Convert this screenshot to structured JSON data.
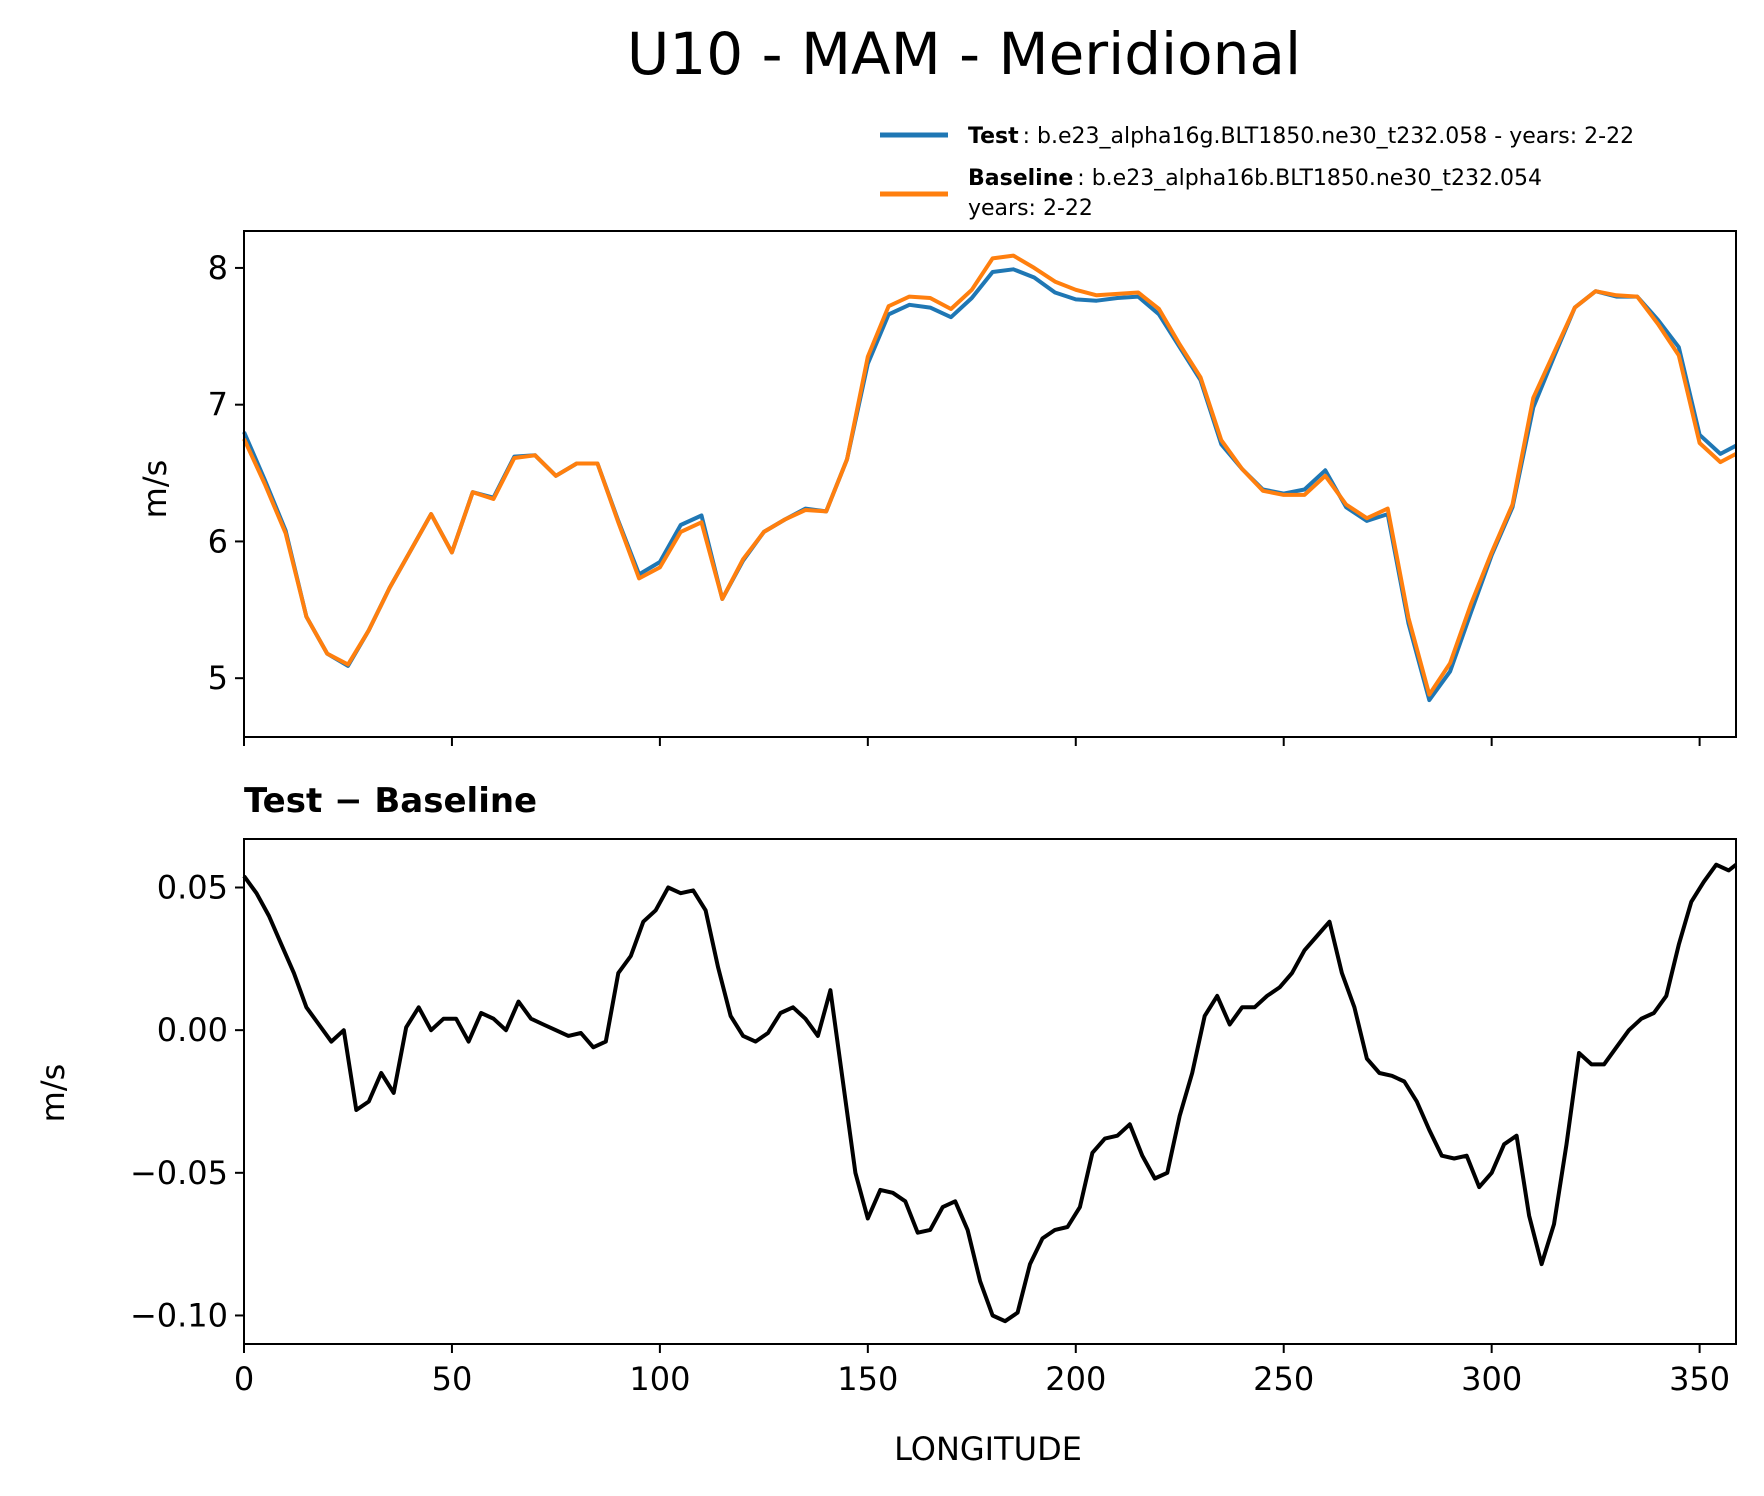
{
  "title": "U10 - MAM - Meridional",
  "legend": {
    "test_label": "Test",
    "test_text": ": b.e23_alpha16g.BLT1850.ne30_t232.058 - years: 2-22",
    "baseline_label": "Baseline",
    "baseline_text_line1": ": b.e23_alpha16b.BLT1850.ne30_t232.054",
    "baseline_text_line2": "years: 2-22"
  },
  "colors": {
    "test": "#1f77b4",
    "baseline": "#ff7f0e",
    "diff": "#000000"
  },
  "chart_data": [
    {
      "type": "line",
      "panel": "top",
      "title": "",
      "xlabel": "",
      "ylabel": "m/s",
      "xlim": [
        0,
        358.75
      ],
      "ylim": [
        4.57,
        8.27
      ],
      "yticks": [
        5,
        6,
        7,
        8
      ],
      "ytick_labels": [
        "5",
        "6",
        "7",
        "8"
      ],
      "xticks": [
        0,
        50,
        100,
        150,
        200,
        250,
        300,
        350
      ],
      "legend_position": "above-top-right",
      "series": [
        {
          "name": "Test",
          "x": [
            0,
            5,
            10,
            15,
            20,
            25,
            30,
            35,
            40,
            45,
            50,
            55,
            60,
            65,
            70,
            75,
            80,
            85,
            90,
            95,
            100,
            105,
            110,
            115,
            120,
            125,
            130,
            135,
            140,
            145,
            150,
            155,
            160,
            165,
            170,
            175,
            180,
            185,
            190,
            195,
            200,
            205,
            210,
            215,
            220,
            225,
            230,
            235,
            240,
            245,
            250,
            255,
            260,
            265,
            270,
            275,
            280,
            285,
            290,
            295,
            300,
            305,
            310,
            315,
            320,
            325,
            330,
            335,
            340,
            345,
            350,
            355,
            358.75
          ],
          "values": [
            6.8,
            6.45,
            6.08,
            5.45,
            5.18,
            5.09,
            5.35,
            5.66,
            5.93,
            6.2,
            5.92,
            6.36,
            6.32,
            6.62,
            6.63,
            6.48,
            6.57,
            6.57,
            6.15,
            5.76,
            5.85,
            6.12,
            6.19,
            5.58,
            5.86,
            6.07,
            6.16,
            6.24,
            6.22,
            6.6,
            7.3,
            7.66,
            7.73,
            7.71,
            7.64,
            7.78,
            7.97,
            7.99,
            7.93,
            7.82,
            7.77,
            7.76,
            7.78,
            7.79,
            7.66,
            7.42,
            7.18,
            6.71,
            6.53,
            6.38,
            6.35,
            6.38,
            6.52,
            6.25,
            6.15,
            6.2,
            5.4,
            4.84,
            5.05,
            5.48,
            5.9,
            6.25,
            6.98,
            7.35,
            7.71,
            7.83,
            7.79,
            7.79,
            7.62,
            7.42,
            6.78,
            6.64,
            6.7
          ]
        },
        {
          "name": "Baseline",
          "x": [
            0,
            5,
            10,
            15,
            20,
            25,
            30,
            35,
            40,
            45,
            50,
            55,
            60,
            65,
            70,
            75,
            80,
            85,
            90,
            95,
            100,
            105,
            110,
            115,
            120,
            125,
            130,
            135,
            140,
            145,
            150,
            155,
            160,
            165,
            170,
            175,
            180,
            185,
            190,
            195,
            200,
            205,
            210,
            215,
            220,
            225,
            230,
            235,
            240,
            245,
            250,
            255,
            260,
            265,
            270,
            275,
            280,
            285,
            290,
            295,
            300,
            305,
            310,
            315,
            320,
            325,
            330,
            335,
            340,
            345,
            350,
            355,
            358.75
          ],
          "values": [
            6.75,
            6.42,
            6.06,
            5.45,
            5.18,
            5.1,
            5.35,
            5.66,
            5.93,
            6.2,
            5.92,
            6.36,
            6.31,
            6.61,
            6.63,
            6.48,
            6.57,
            6.57,
            6.14,
            5.73,
            5.81,
            6.07,
            6.14,
            5.58,
            5.87,
            6.07,
            6.16,
            6.23,
            6.22,
            6.6,
            7.35,
            7.72,
            7.79,
            7.78,
            7.7,
            7.84,
            8.07,
            8.09,
            8.0,
            7.9,
            7.84,
            7.8,
            7.81,
            7.82,
            7.7,
            7.44,
            7.2,
            6.74,
            6.53,
            6.37,
            6.34,
            6.34,
            6.48,
            6.27,
            6.17,
            6.24,
            5.44,
            4.88,
            5.11,
            5.54,
            5.92,
            6.27,
            7.05,
            7.38,
            7.71,
            7.83,
            7.8,
            7.79,
            7.59,
            7.36,
            6.72,
            6.58,
            6.64
          ]
        }
      ]
    },
    {
      "type": "line",
      "panel": "bottom",
      "title": "Test − Baseline",
      "xlabel": "LONGITUDE",
      "ylabel": "m/s",
      "xlim": [
        0,
        358.75
      ],
      "ylim": [
        -0.11,
        0.067
      ],
      "yticks": [
        0.05,
        0.0,
        -0.05,
        -0.1
      ],
      "ytick_labels": [
        "0.05",
        "0.00",
        "−0.05",
        "−0.10"
      ],
      "xticks": [
        0,
        50,
        100,
        150,
        200,
        250,
        300,
        350
      ],
      "xtick_labels": [
        "0",
        "50",
        "100",
        "150",
        "200",
        "250",
        "300",
        "350"
      ],
      "series": [
        {
          "name": "Test − Baseline",
          "x": [
            0,
            3,
            6,
            9,
            12,
            15,
            18,
            21,
            24,
            27,
            30,
            33,
            36,
            39,
            42,
            45,
            48,
            51,
            54,
            57,
            60,
            63,
            66,
            69,
            72,
            75,
            78,
            81,
            84,
            87,
            90,
            93,
            96,
            99,
            102,
            105,
            108,
            111,
            114,
            117,
            120,
            123,
            126,
            129,
            132,
            135,
            138,
            141,
            144,
            147,
            150,
            153,
            156,
            159,
            162,
            165,
            168,
            171,
            174,
            177,
            180,
            183,
            186,
            189,
            192,
            195,
            198,
            201,
            204,
            207,
            210,
            213,
            216,
            219,
            222,
            225,
            228,
            231,
            234,
            237,
            240,
            243,
            246,
            249,
            252,
            255,
            258,
            261,
            264,
            267,
            270,
            273,
            276,
            279,
            282,
            285,
            288,
            291,
            294,
            297,
            300,
            303,
            306,
            309,
            312,
            315,
            318,
            321,
            324,
            327,
            330,
            333,
            336,
            339,
            342,
            345,
            348,
            351,
            354,
            357,
            358.75
          ],
          "values": [
            0.054,
            0.048,
            0.04,
            0.03,
            0.02,
            0.008,
            0.002,
            -0.004,
            0.0,
            -0.028,
            -0.025,
            -0.015,
            -0.022,
            0.001,
            0.008,
            0.0,
            0.004,
            0.004,
            -0.004,
            0.006,
            0.004,
            0.0,
            0.01,
            0.004,
            0.002,
            0.0,
            -0.002,
            -0.001,
            -0.006,
            -0.004,
            0.02,
            0.026,
            0.038,
            0.042,
            0.05,
            0.048,
            0.049,
            0.042,
            0.022,
            0.005,
            -0.002,
            -0.004,
            -0.001,
            0.006,
            0.008,
            0.004,
            -0.002,
            0.014,
            -0.018,
            -0.05,
            -0.066,
            -0.056,
            -0.057,
            -0.06,
            -0.071,
            -0.07,
            -0.062,
            -0.06,
            -0.07,
            -0.088,
            -0.1,
            -0.102,
            -0.099,
            -0.082,
            -0.073,
            -0.07,
            -0.069,
            -0.062,
            -0.043,
            -0.038,
            -0.037,
            -0.033,
            -0.044,
            -0.052,
            -0.05,
            -0.03,
            -0.015,
            0.005,
            0.012,
            0.002,
            0.008,
            0.008,
            0.012,
            0.015,
            0.02,
            0.028,
            0.033,
            0.038,
            0.02,
            0.008,
            -0.01,
            -0.015,
            -0.016,
            -0.018,
            -0.025,
            -0.035,
            -0.044,
            -0.045,
            -0.044,
            -0.055,
            -0.05,
            -0.04,
            -0.037,
            -0.065,
            -0.082,
            -0.068,
            -0.04,
            -0.008,
            -0.012,
            -0.012,
            -0.006,
            0.0,
            0.004,
            0.006,
            0.012,
            0.03,
            0.045,
            0.052,
            0.058,
            0.056,
            0.058
          ]
        }
      ]
    }
  ]
}
